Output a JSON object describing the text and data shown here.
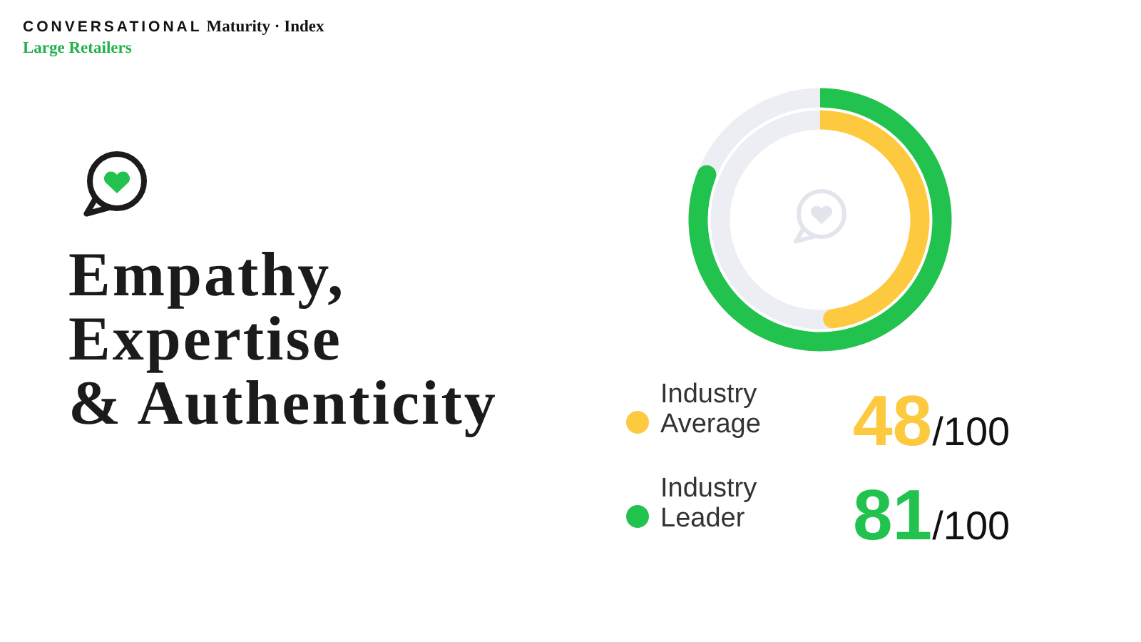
{
  "chart_data": {
    "type": "other",
    "title": "Empathy, Expertise & Authenticity",
    "subtitle": "Large Retailers",
    "annotations": [
      "CONVERSATIONAL Maturity · Index"
    ],
    "categories": [
      "Industry Average",
      "Industry Leader"
    ],
    "values": [
      48,
      81
    ],
    "colors": [
      "#fdc93f",
      "#22c24f"
    ],
    "value_labels": [
      "48/100",
      "81/100"
    ]
  }
}
